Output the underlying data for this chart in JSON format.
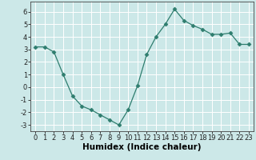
{
  "x": [
    0,
    1,
    2,
    3,
    4,
    5,
    6,
    7,
    8,
    9,
    10,
    11,
    12,
    13,
    14,
    15,
    16,
    17,
    18,
    19,
    20,
    21,
    22,
    23
  ],
  "y": [
    3.2,
    3.2,
    2.8,
    1.0,
    -0.7,
    -1.5,
    -1.8,
    -2.2,
    -2.6,
    -3.0,
    -1.8,
    0.1,
    2.6,
    4.0,
    5.0,
    6.2,
    5.3,
    4.9,
    4.6,
    4.2,
    4.2,
    4.3,
    3.4,
    3.4
  ],
  "line_color": "#2e7d6e",
  "marker": "D",
  "marker_size": 2.5,
  "bg_color": "#cce8e8",
  "grid_color": "#ffffff",
  "xlabel": "Humidex (Indice chaleur)",
  "ylim": [
    -3.5,
    6.8
  ],
  "xlim": [
    -0.5,
    23.5
  ],
  "yticks": [
    -3,
    -2,
    -1,
    0,
    1,
    2,
    3,
    4,
    5,
    6
  ],
  "xticks": [
    0,
    1,
    2,
    3,
    4,
    5,
    6,
    7,
    8,
    9,
    10,
    11,
    12,
    13,
    14,
    15,
    16,
    17,
    18,
    19,
    20,
    21,
    22,
    23
  ],
  "tick_fontsize": 6,
  "xlabel_fontsize": 7.5
}
